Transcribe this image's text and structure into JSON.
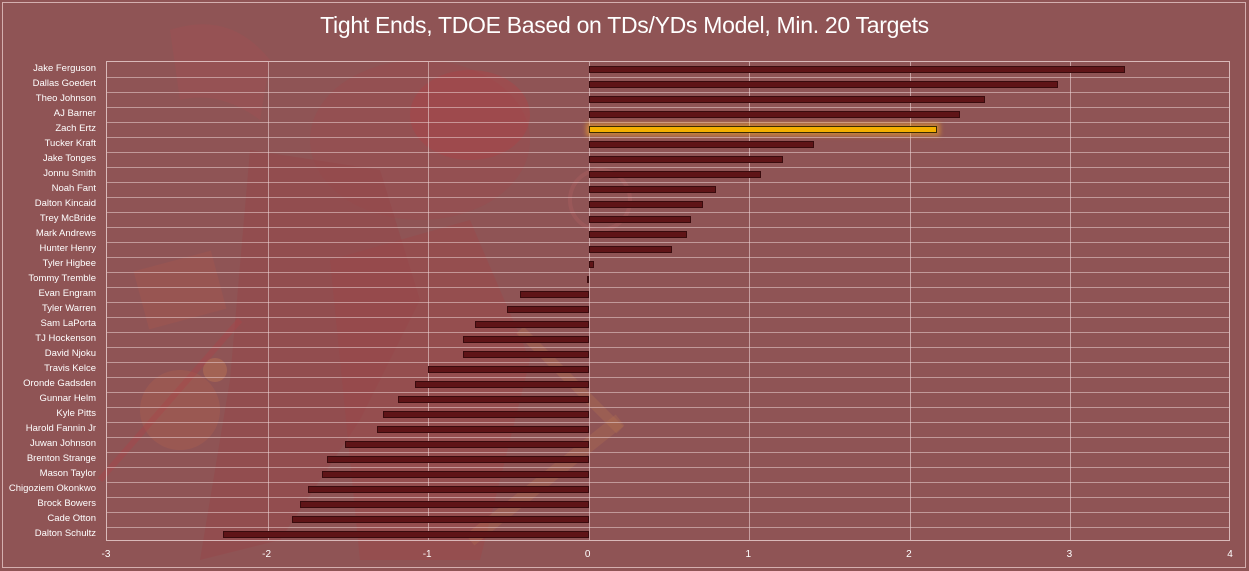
{
  "title": "Tight Ends, TDOE Based on TDs/YDs Model, Min. 20 Targets",
  "colors": {
    "background": "#8f5455",
    "bar": "#5f1417",
    "highlight_bar": "#f4b000",
    "text": "#ffffff",
    "grid": "#ebd2d2"
  },
  "highlighted_player": "Zach Ertz",
  "chart_data": {
    "type": "bar",
    "orientation": "horizontal",
    "title": "Tight Ends, TDOE Based on TDs/YDs Model, Min. 20 Targets",
    "xlabel": "",
    "ylabel": "",
    "xlim": [
      -3,
      4
    ],
    "xticks": [
      -3,
      -2,
      -1,
      0,
      1,
      2,
      3,
      4
    ],
    "grid": {
      "vertical": true,
      "horizontal": true
    },
    "legend": null,
    "categories": [
      "Jake Ferguson",
      "Dallas Goedert",
      "Theo Johnson",
      "AJ Barner",
      "Zach Ertz",
      "Tucker Kraft",
      "Jake Tonges",
      "Jonnu Smith",
      "Noah Fant",
      "Dalton Kincaid",
      "Trey McBride",
      "Mark Andrews",
      "Hunter Henry",
      "Tyler Higbee",
      "Tommy Tremble",
      "Evan Engram",
      "Tyler Warren",
      "Sam LaPorta",
      "TJ Hockenson",
      "David Njoku",
      "Travis Kelce",
      "Oronde Gadsden",
      "Gunnar Helm",
      "Kyle Pitts",
      "Harold Fannin Jr",
      "Juwan Johnson",
      "Brenton Strange",
      "Mason Taylor",
      "Chigoziem Okonkwo",
      "Brock Bowers",
      "Cade Otton",
      "Dalton Schultz"
    ],
    "values": [
      3.34,
      2.92,
      2.47,
      2.31,
      2.17,
      1.4,
      1.21,
      1.07,
      0.79,
      0.71,
      0.64,
      0.61,
      0.52,
      0.03,
      -0.01,
      -0.43,
      -0.51,
      -0.71,
      -0.78,
      -0.78,
      -1.0,
      -1.08,
      -1.19,
      -1.28,
      -1.32,
      -1.52,
      -1.63,
      -1.66,
      -1.75,
      -1.8,
      -1.85,
      -2.28
    ],
    "highlight": "Zach Ertz"
  }
}
